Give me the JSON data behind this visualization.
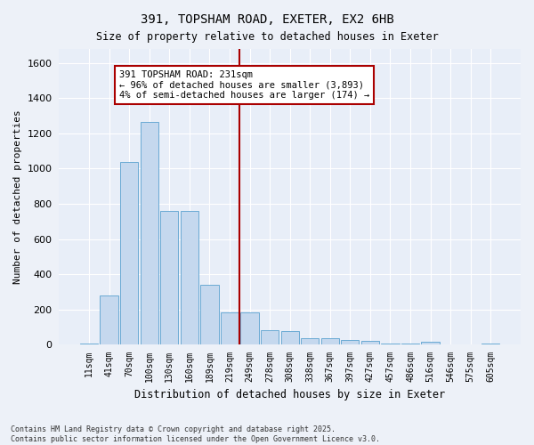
{
  "title": "391, TOPSHAM ROAD, EXETER, EX2 6HB",
  "subtitle": "Size of property relative to detached houses in Exeter",
  "xlabel": "Distribution of detached houses by size in Exeter",
  "ylabel": "Number of detached properties",
  "bar_color": "#c5d8ee",
  "bar_edge_color": "#6aaad4",
  "background_color": "#e8eef8",
  "grid_color": "#ffffff",
  "fig_bg_color": "#edf1f8",
  "categories": [
    "11sqm",
    "41sqm",
    "70sqm",
    "100sqm",
    "130sqm",
    "160sqm",
    "189sqm",
    "219sqm",
    "249sqm",
    "278sqm",
    "308sqm",
    "338sqm",
    "367sqm",
    "397sqm",
    "427sqm",
    "457sqm",
    "486sqm",
    "516sqm",
    "546sqm",
    "575sqm",
    "605sqm"
  ],
  "values": [
    8,
    278,
    1040,
    1265,
    760,
    760,
    340,
    185,
    185,
    80,
    75,
    37,
    37,
    28,
    20,
    8,
    8,
    18,
    0,
    0,
    8
  ],
  "ylim": [
    0,
    1680
  ],
  "yticks": [
    0,
    200,
    400,
    600,
    800,
    1000,
    1200,
    1400,
    1600
  ],
  "vline_x": 8.0,
  "vline_color": "#aa0000",
  "annotation_text": "391 TOPSHAM ROAD: 231sqm\n← 96% of detached houses are smaller (3,893)\n4% of semi-detached houses are larger (174) →",
  "footer_line1": "Contains HM Land Registry data © Crown copyright and database right 2025.",
  "footer_line2": "Contains public sector information licensed under the Open Government Licence v3.0.",
  "figsize": [
    6.0,
    5.0
  ],
  "dpi": 100
}
